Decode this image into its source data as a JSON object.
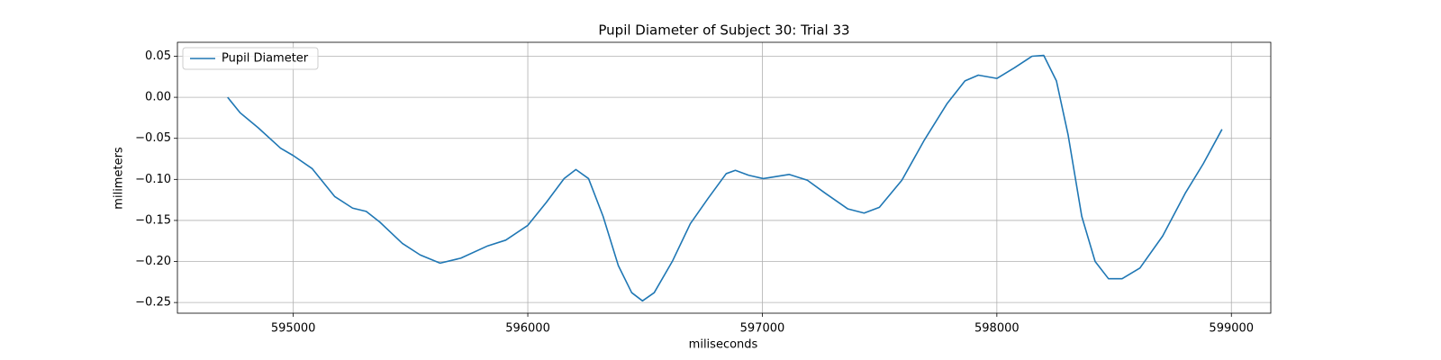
{
  "chart_data": {
    "type": "line",
    "title": "Pupil Diameter of Subject 30: Trial 33",
    "xlabel": "miliseconds",
    "ylabel": "milimeters",
    "x": [
      594720,
      594774,
      594850,
      594946,
      595000,
      595081,
      595177,
      595253,
      595311,
      595369,
      595465,
      595541,
      595626,
      595714,
      595829,
      595906,
      596000,
      596079,
      596155,
      596205,
      596259,
      596321,
      596386,
      596443,
      596489,
      596539,
      596616,
      596693,
      596769,
      596846,
      596885,
      596942,
      597004,
      597115,
      597192,
      597269,
      597365,
      597434,
      597499,
      597595,
      597691,
      597787,
      597864,
      597921,
      598000,
      598075,
      598150,
      598200,
      598254,
      598304,
      598362,
      598419,
      598476,
      598534,
      598610,
      598707,
      598803,
      598880,
      598960
    ],
    "series": [
      {
        "name": "Pupil Diameter",
        "color": "#1f77b4",
        "values": [
          0.0,
          -0.019,
          -0.037,
          -0.062,
          -0.071,
          -0.087,
          -0.121,
          -0.135,
          -0.139,
          -0.152,
          -0.178,
          -0.192,
          -0.202,
          -0.196,
          -0.181,
          -0.174,
          -0.156,
          -0.128,
          -0.099,
          -0.088,
          -0.099,
          -0.145,
          -0.205,
          -0.238,
          -0.248,
          -0.238,
          -0.2,
          -0.154,
          -0.123,
          -0.093,
          -0.089,
          -0.095,
          -0.099,
          -0.094,
          -0.101,
          -0.117,
          -0.136,
          -0.141,
          -0.134,
          -0.101,
          -0.052,
          -0.008,
          0.02,
          0.027,
          0.023,
          0.036,
          0.05,
          0.051,
          0.02,
          -0.046,
          -0.145,
          -0.2,
          -0.221,
          -0.221,
          -0.208,
          -0.169,
          -0.117,
          -0.081,
          -0.039
        ]
      }
    ],
    "xlim": [
      594506,
      599168
    ],
    "ylim": [
      -0.263,
      0.067
    ],
    "xticks": [
      595000,
      596000,
      597000,
      598000,
      599000
    ],
    "yticks": [
      0.05,
      {
        "value": 0,
        "label": "0.00"
      },
      {
        "value": -0.05,
        "label": "−0.05"
      },
      {
        "value": -0.1,
        "label": "−0.10"
      },
      {
        "value": -0.15,
        "label": "−0.15"
      },
      {
        "value": -0.2,
        "label": "−0.20"
      },
      {
        "value": -0.25,
        "label": "−0.25"
      }
    ],
    "grid": true,
    "legend": "upper left"
  }
}
